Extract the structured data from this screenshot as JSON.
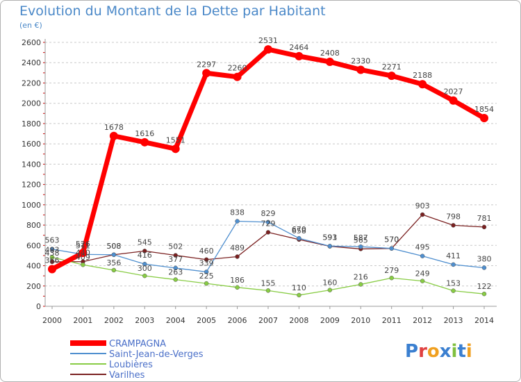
{
  "title": "Evolution du Montant de la Dette par Habitant",
  "unit": "(en €)",
  "logo": "Proxiti",
  "chart_data": {
    "type": "line",
    "x": [
      "2000",
      "2001",
      "2002",
      "2003",
      "2004",
      "2005",
      "2006",
      "2007",
      "2008",
      "2009",
      "2010",
      "2011",
      "2012",
      "2013",
      "2014"
    ],
    "ylim": [
      0,
      2600
    ],
    "yticks": [
      0,
      200,
      400,
      600,
      800,
      1000,
      1200,
      1400,
      1600,
      1800,
      2000,
      2200,
      2400,
      2600
    ],
    "grid": "horizontal dashed",
    "legend_position": "bottom-left",
    "series": [
      {
        "name": "CRAMPAGNA",
        "color": "#ff0000",
        "values": [
          366,
          526,
          1678,
          1616,
          1551,
          2297,
          2260,
          2531,
          2464,
          2408,
          2330,
          2271,
          2188,
          2027,
          1854
        ]
      },
      {
        "name": "Saint-Jean-de-Verges",
        "color": "#4f8fcf",
        "values": [
          563,
          511,
          508,
          416,
          377,
          339,
          838,
          829,
          670,
          593,
          587,
          570,
          495,
          411,
          380
        ]
      },
      {
        "name": "Loubières",
        "color": "#88cc44",
        "values": [
          483,
          409,
          356,
          300,
          263,
          225,
          186,
          155,
          110,
          160,
          216,
          279,
          249,
          153,
          122
        ]
      },
      {
        "name": "Varilhes",
        "color": "#7a2020",
        "values": [
          438,
          440,
          508,
          545,
          502,
          460,
          489,
          729,
          658,
          591,
          565,
          570,
          903,
          798,
          781
        ]
      }
    ]
  }
}
